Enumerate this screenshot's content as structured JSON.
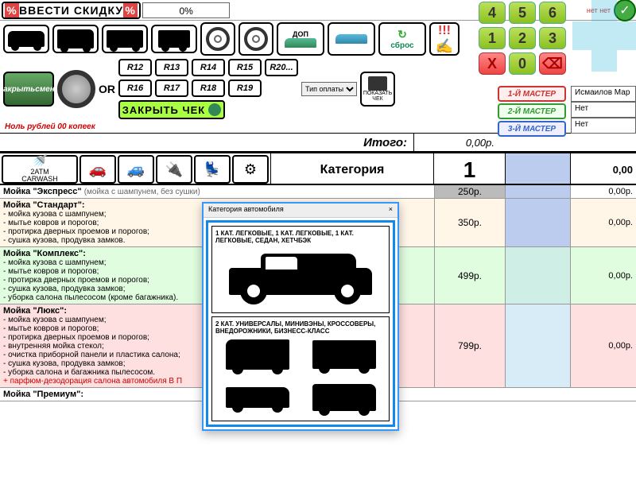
{
  "topbar": {
    "discount_label": "ВВЕСТИ СКИДКУ",
    "percent": "0%",
    "small_txt": "нет нет"
  },
  "keypad": {
    "k4": "4",
    "k5": "5",
    "k6": "6",
    "k1": "1",
    "k2": "2",
    "k3": "3",
    "kx": "X",
    "k0": "0",
    "kb": "⌫"
  },
  "toolbar2": {
    "dop": "ДОП",
    "reset": "сброс",
    "excl": "!!!"
  },
  "row3": {
    "close_shift": "Закрыть смену",
    "close_shift_l1": "Закрыть",
    "close_shift_l2": "смену",
    "or": "OR",
    "sizes_top": [
      "R12",
      "R13",
      "R14",
      "R15",
      "R20..."
    ],
    "sizes_bot": [
      "R16",
      "R17",
      "R18",
      "R19"
    ],
    "close_check": "ЗАКРЫТЬ ЧЕК",
    "pay_type": "Тип оплаты",
    "show_check_l1": "ПОКАЗАТЬ",
    "show_check_l2": "ЧЕК"
  },
  "zero_rub": "Ноль рублей 00 копеек",
  "itogo": {
    "label": "Итого:",
    "value": "0,00р."
  },
  "masters": {
    "m1": "1-Й МАСТЕР",
    "m2": "2-Й МАСТЕР",
    "m3": "3-Й МАСТЕР"
  },
  "rightcol": {
    "r1": "Исмаилов Мар",
    "r2": "Нет",
    "r3": "Нет"
  },
  "category": {
    "carwash_l1": "2ATM",
    "carwash_l2": "CARWASH",
    "label": "Категория",
    "value": "1",
    "total": "0,00"
  },
  "services": [
    {
      "name": "Мойка \"Экспресс\"",
      "sub": "(мойка с шампунем, без сушки)",
      "items": [],
      "price": "250р.",
      "col3": "0,00р.",
      "cls": "row-express"
    },
    {
      "name": "Мойка \"Стандарт\":",
      "items": [
        "- мойка кузова с шампунем;",
        "- мытье ковров и порогов;",
        "- протирка дверных проемов и порогов;",
        "- сушка кузова, продувка замков."
      ],
      "price": "350р.",
      "col3": "0,00р.",
      "cls": "row-standard"
    },
    {
      "name": "Мойка \"Комплекс\":",
      "items": [
        "- мойка кузова с шампунем;",
        "- мытье ковров и порогов;",
        "- протирка дверных проемов и порогов;",
        "- сушка кузова, продувка замков;",
        "- уборка салона пылесосом (кроме багажника)."
      ],
      "price": "499р.",
      "col3": "0,00р.",
      "cls": "row-complex"
    },
    {
      "name": "Мойка \"Люкс\":",
      "items": [
        "- мойка кузова с шампунем;",
        "- мытье ковров и порогов;",
        "- протирка дверных проемов и порогов;",
        "- внутренняя мойка стекол;",
        "- очистка приборной панели и пластика салона;",
        "- сушка кузова, продувка замков;",
        "- уборка салона и багажника пылесосом."
      ],
      "bonus": "+ парфюм-дезодорация салона автомобиля В П",
      "price": "799р.",
      "col3": "0,00р.",
      "cls": "row-lux"
    }
  ],
  "last_svc": "Мойка \"Премиум\":",
  "modal": {
    "title": "Категория автомобиля",
    "close": "×",
    "cat1": "1 КАТ. ЛЕГКОВЫЕ, 1 КАТ. ЛЕГКОВЫЕ, 1 КАТ. ЛЕГКОВЫЕ, СЕДАН, ХЕТЧБЭК",
    "cat2": "2 КАТ. УНИВЕРСАЛЫ, МИНИВЭНЫ, КРОССОВЕРЫ, ВНЕДОРОЖНИКИ, БИЗНЕСС-КЛАСС"
  },
  "colors": {
    "accent_green": "#8bc020",
    "accent_blue": "#18e",
    "row_standard_bg": "#fff6e8",
    "row_complex_bg": "#e0fde0",
    "row_lux_bg": "#ffe0e0",
    "col_blue_bg": "#bce"
  }
}
